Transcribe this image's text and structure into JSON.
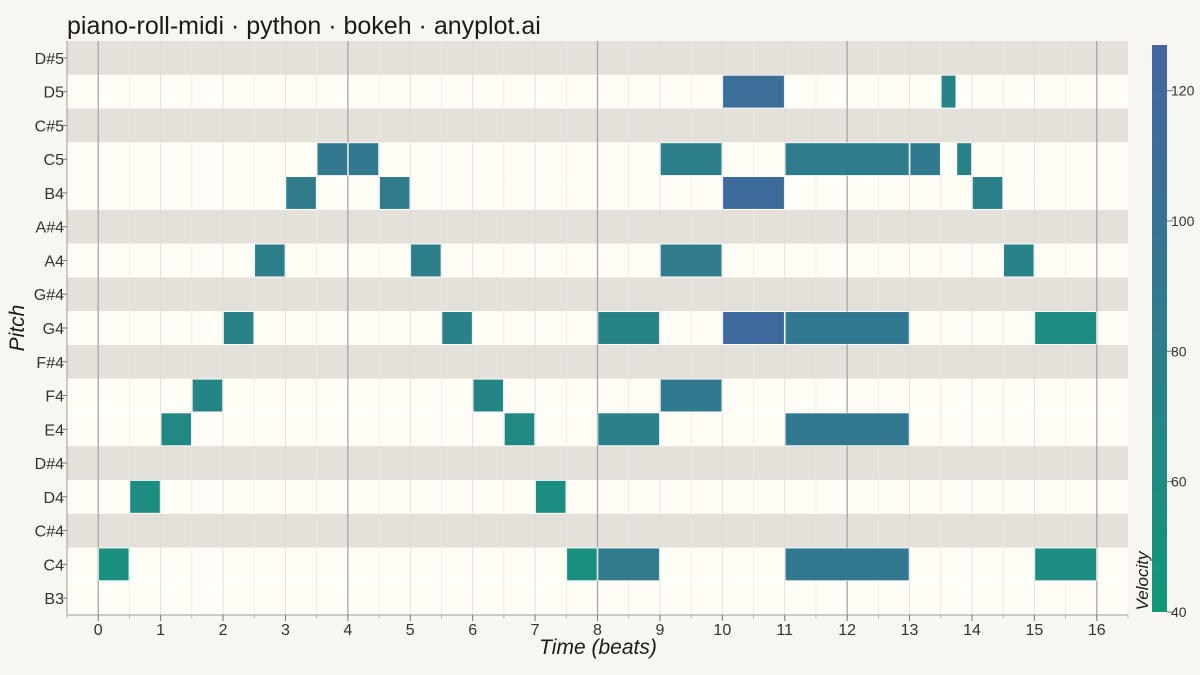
{
  "chart_data": {
    "type": "heatmap",
    "subtype": "piano-roll",
    "title": "piano-roll-midi · python · bokeh · anyplot.ai",
    "xlabel": "Time (beats)",
    "ylabel": "Pitch",
    "xlim": [
      -0.5,
      16.5
    ],
    "x_ticks": [
      0,
      1,
      2,
      3,
      4,
      5,
      6,
      7,
      8,
      9,
      10,
      11,
      12,
      13,
      14,
      15,
      16
    ],
    "bar_lines_at": [
      0,
      4,
      8,
      12,
      16
    ],
    "pitches": [
      "B3",
      "C4",
      "C#4",
      "D4",
      "D#4",
      "E4",
      "F4",
      "F#4",
      "G4",
      "G#4",
      "A4",
      "A#4",
      "B4",
      "C5",
      "C#5",
      "D5",
      "D#5"
    ],
    "black_keys": [
      "C#4",
      "D#4",
      "F#4",
      "G#4",
      "A#4",
      "C#5",
      "D#5"
    ],
    "colorbar": {
      "title": "Velocity",
      "range": [
        40,
        127
      ],
      "ticks": [
        40,
        60,
        80,
        100,
        120
      ],
      "colors": [
        "#0e9878",
        "#2f7d8c",
        "#4563a3"
      ]
    },
    "notes": [
      {
        "pitch": "C4",
        "start": 0,
        "duration": 0.5,
        "velocity": 55
      },
      {
        "pitch": "D4",
        "start": 0.5,
        "duration": 0.5,
        "velocity": 60
      },
      {
        "pitch": "E4",
        "start": 1,
        "duration": 0.5,
        "velocity": 65
      },
      {
        "pitch": "F4",
        "start": 1.5,
        "duration": 0.5,
        "velocity": 70
      },
      {
        "pitch": "G4",
        "start": 2,
        "duration": 0.5,
        "velocity": 75
      },
      {
        "pitch": "A4",
        "start": 2.5,
        "duration": 0.5,
        "velocity": 80
      },
      {
        "pitch": "B4",
        "start": 3,
        "duration": 0.5,
        "velocity": 85
      },
      {
        "pitch": "C5",
        "start": 3.5,
        "duration": 0.5,
        "velocity": 90
      },
      {
        "pitch": "C5",
        "start": 4,
        "duration": 0.5,
        "velocity": 90
      },
      {
        "pitch": "B4",
        "start": 4.5,
        "duration": 0.5,
        "velocity": 85
      },
      {
        "pitch": "A4",
        "start": 5,
        "duration": 0.5,
        "velocity": 80
      },
      {
        "pitch": "G4",
        "start": 5.5,
        "duration": 0.5,
        "velocity": 75
      },
      {
        "pitch": "F4",
        "start": 6,
        "duration": 0.5,
        "velocity": 70
      },
      {
        "pitch": "E4",
        "start": 6.5,
        "duration": 0.5,
        "velocity": 65
      },
      {
        "pitch": "D4",
        "start": 7,
        "duration": 0.5,
        "velocity": 60
      },
      {
        "pitch": "C4",
        "start": 7.5,
        "duration": 0.5,
        "velocity": 55
      },
      {
        "pitch": "C4",
        "start": 8,
        "duration": 1,
        "velocity": 85
      },
      {
        "pitch": "E4",
        "start": 8,
        "duration": 1,
        "velocity": 78
      },
      {
        "pitch": "G4",
        "start": 8,
        "duration": 1,
        "velocity": 72
      },
      {
        "pitch": "F4",
        "start": 9,
        "duration": 1,
        "velocity": 88
      },
      {
        "pitch": "A4",
        "start": 9,
        "duration": 1,
        "velocity": 85
      },
      {
        "pitch": "C5",
        "start": 9,
        "duration": 1,
        "velocity": 80
      },
      {
        "pitch": "G4",
        "start": 10,
        "duration": 1,
        "velocity": 115
      },
      {
        "pitch": "B4",
        "start": 10,
        "duration": 1,
        "velocity": 112
      },
      {
        "pitch": "D5",
        "start": 10,
        "duration": 1,
        "velocity": 108
      },
      {
        "pitch": "C4",
        "start": 11,
        "duration": 2,
        "velocity": 90
      },
      {
        "pitch": "E4",
        "start": 11,
        "duration": 2,
        "velocity": 90
      },
      {
        "pitch": "G4",
        "start": 11,
        "duration": 2,
        "velocity": 88
      },
      {
        "pitch": "C5",
        "start": 11,
        "duration": 2,
        "velocity": 84
      },
      {
        "pitch": "C5",
        "start": 13,
        "duration": 0.5,
        "velocity": 88
      },
      {
        "pitch": "D5",
        "start": 13.5,
        "duration": 0.25,
        "velocity": 72
      },
      {
        "pitch": "C5",
        "start": 13.75,
        "duration": 0.25,
        "velocity": 75
      },
      {
        "pitch": "B4",
        "start": 14,
        "duration": 0.5,
        "velocity": 78
      },
      {
        "pitch": "A4",
        "start": 14.5,
        "duration": 0.5,
        "velocity": 74
      },
      {
        "pitch": "G4",
        "start": 15,
        "duration": 1,
        "velocity": 60
      },
      {
        "pitch": "C4",
        "start": 15,
        "duration": 1,
        "velocity": 60
      }
    ]
  }
}
